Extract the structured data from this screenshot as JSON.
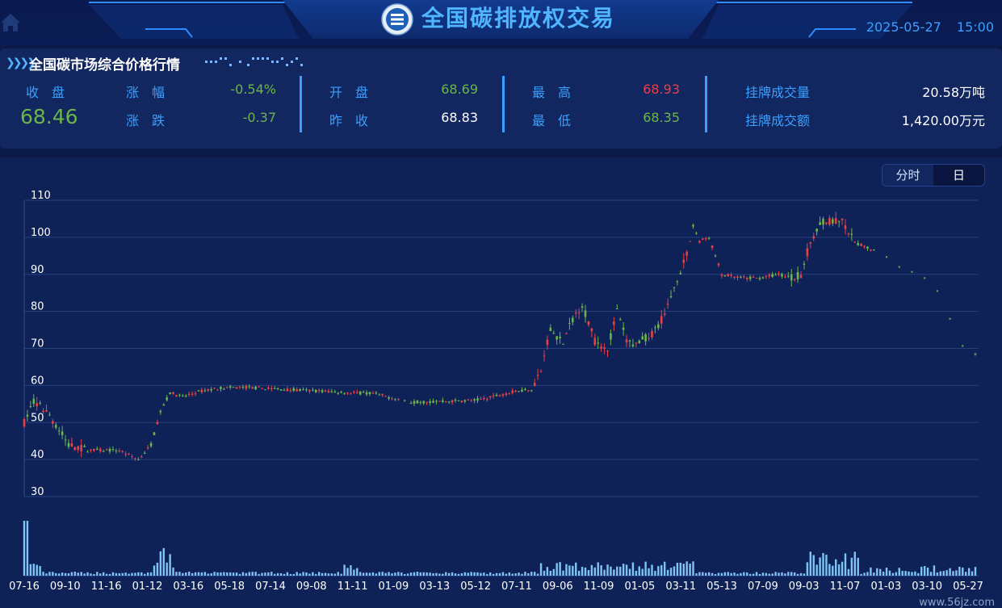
{
  "header": {
    "title": "全国碳排放权交易",
    "date": "2025-05-27",
    "time": "15:00"
  },
  "quote": {
    "section_title": "全国碳市场综合价格行情",
    "close_label": "收　盘",
    "close_value": "68.46",
    "change_pct_label": "涨　幅",
    "change_pct_value": "-0.54%",
    "change_label": "涨　跌",
    "change_value": "-0.37",
    "open_label": "开　盘",
    "open_value": "68.69",
    "prev_close_label": "昨　收",
    "prev_close_value": "68.83",
    "high_label": "最　高",
    "high_value": "68.93",
    "low_label": "最　低",
    "low_value": "68.35",
    "volume_label": "挂牌成交量",
    "volume_value": "20.58万吨",
    "amount_label": "挂牌成交额",
    "amount_value": "1,420.00万元"
  },
  "toggle": {
    "intraday_label": "分时",
    "daily_label": "日",
    "selected": "日"
  },
  "colors": {
    "up": "#e84045",
    "down": "#6bb54a",
    "volume": "#7fc4f5",
    "accent": "#3aa0ff"
  },
  "watermark": "www.56jz.com",
  "chart_data": {
    "type": "candlestick",
    "y_ticks": [
      "110",
      "100",
      "90",
      "80",
      "70",
      "60",
      "50",
      "40",
      "30"
    ],
    "ylim": [
      30,
      110
    ],
    "x_ticks": [
      "07-16",
      "09-10",
      "11-16",
      "01-12",
      "03-16",
      "05-18",
      "07-14",
      "09-08",
      "11-11",
      "01-09",
      "03-13",
      "05-12",
      "07-11",
      "09-06",
      "11-09",
      "01-05",
      "03-11",
      "05-13",
      "07-09",
      "09-03",
      "11-07",
      "01-03",
      "03-10",
      "05-27"
    ],
    "price_path": [
      [
        0,
        50
      ],
      [
        3,
        56
      ],
      [
        8,
        52
      ],
      [
        14,
        44
      ],
      [
        20,
        42.5
      ],
      [
        30,
        42.5
      ],
      [
        36,
        40
      ],
      [
        40,
        44
      ],
      [
        43,
        53
      ],
      [
        46,
        58
      ],
      [
        50,
        57
      ],
      [
        56,
        58.5
      ],
      [
        62,
        59.3
      ],
      [
        70,
        59.5
      ],
      [
        80,
        59
      ],
      [
        90,
        58.6
      ],
      [
        100,
        58.2
      ],
      [
        110,
        57.8
      ],
      [
        118,
        56.3
      ],
      [
        122,
        55.5
      ],
      [
        128,
        55.6
      ],
      [
        136,
        55.8
      ],
      [
        142,
        56
      ],
      [
        146,
        56.5
      ],
      [
        150,
        57.5
      ],
      [
        156,
        58.6
      ],
      [
        160,
        59
      ],
      [
        163,
        64
      ],
      [
        166,
        75
      ],
      [
        170,
        71.5
      ],
      [
        173,
        78
      ],
      [
        176,
        82
      ],
      [
        180,
        72
      ],
      [
        184,
        70
      ],
      [
        187,
        80
      ],
      [
        190,
        72
      ],
      [
        193,
        71
      ],
      [
        198,
        74
      ],
      [
        202,
        79
      ],
      [
        206,
        89
      ],
      [
        209,
        95
      ],
      [
        211,
        103
      ],
      [
        213,
        99
      ],
      [
        216,
        100
      ],
      [
        220,
        90
      ],
      [
        226,
        89
      ],
      [
        232,
        89
      ],
      [
        238,
        90
      ],
      [
        242,
        89
      ],
      [
        245,
        90
      ],
      [
        248,
        99
      ],
      [
        252,
        104.5
      ],
      [
        258,
        104
      ],
      [
        262,
        98.5
      ],
      [
        265,
        97.5
      ],
      [
        270,
        96
      ],
      [
        276,
        92
      ],
      [
        282,
        90
      ],
      [
        286,
        88
      ],
      [
        290,
        83
      ],
      [
        294,
        73
      ],
      [
        297,
        69.5
      ],
      [
        300,
        68.46
      ]
    ],
    "gaps": [
      [
        118,
        122
      ],
      [
        268,
        300
      ]
    ],
    "volume_note": "daily volume bars; spikes near 07-16, 11-16, 11-07"
  }
}
